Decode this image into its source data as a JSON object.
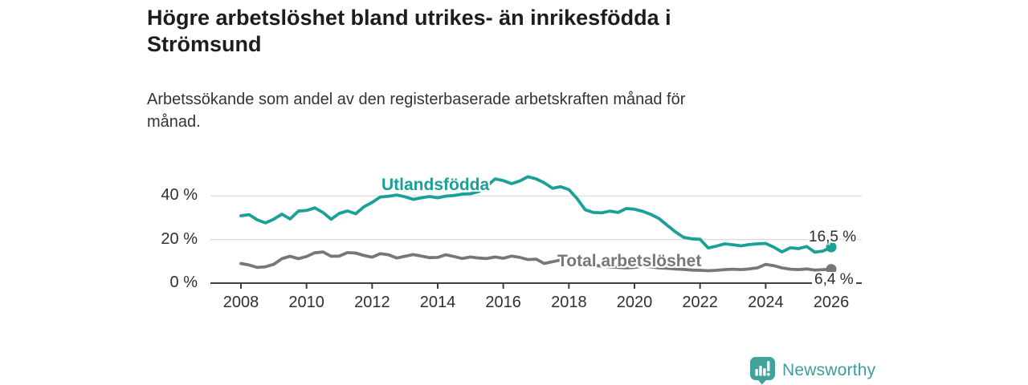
{
  "chart_data": {
    "type": "line",
    "title": "Högre arbetslöshet bland utrikes- än inrikesfödda i\nStrömsund",
    "subtitle": "Arbetssökande som andel av den registerbaserade arbetskraften månad för\nmånad.",
    "x_start": 2008,
    "x_step": 0.25,
    "xlim": [
      2007.05,
      2026.95
    ],
    "ylim": [
      0,
      52
    ],
    "grid": "horizontal",
    "legend": "direct-line-labels",
    "x_ticks": [
      "2008",
      "2010",
      "2012",
      "2014",
      "2016",
      "2018",
      "2020",
      "2022",
      "2024",
      "2026"
    ],
    "y_ticks": [
      {
        "value": 0,
        "label": "0 %"
      },
      {
        "value": 20,
        "label": "20 %"
      },
      {
        "value": 40,
        "label": "40 %"
      }
    ],
    "axis_color": "#3f3f3f",
    "gridline_color": "#d9d9d9",
    "series": [
      {
        "name": "Utlandsfödda",
        "color": "#1aa096",
        "end_value": 16.5,
        "end_label": "16,5 %",
        "values": [
          30.9,
          31.4,
          29.0,
          27.6,
          29.3,
          31.6,
          29.4,
          33.0,
          33.3,
          34.5,
          32.4,
          29.3,
          32.0,
          33.1,
          31.8,
          35.0,
          37.0,
          39.5,
          39.8,
          40.4,
          39.6,
          38.4,
          39.1,
          39.7,
          39.1,
          39.9,
          40.2,
          40.8,
          41.0,
          42.0,
          44.5,
          47.8,
          47.0,
          45.6,
          46.8,
          48.8,
          47.8,
          46.0,
          43.5,
          44.2,
          42.9,
          38.8,
          33.6,
          32.4,
          32.2,
          33.0,
          32.4,
          34.2,
          33.9,
          32.9,
          31.5,
          29.6,
          26.5,
          23.5,
          21.0,
          20.3,
          20.1,
          16.1,
          17.0,
          18.0,
          17.6,
          17.1,
          17.7,
          18.0,
          18.2,
          16.5,
          14.3,
          16.2,
          15.8,
          16.8,
          14.2,
          14.7,
          16.5
        ]
      },
      {
        "name": "Total arbetslöshet",
        "color": "#77777b",
        "end_value": 6.4,
        "end_label": "6,4 %",
        "values": [
          9.0,
          8.3,
          7.2,
          7.5,
          8.6,
          11.2,
          12.3,
          11.2,
          12.2,
          13.9,
          14.3,
          12.3,
          12.4,
          14.0,
          13.8,
          12.7,
          11.9,
          13.5,
          13.0,
          11.5,
          12.3,
          13.1,
          12.4,
          11.7,
          11.8,
          13.0,
          12.2,
          11.3,
          12.0,
          11.5,
          11.3,
          12.0,
          11.4,
          12.4,
          11.8,
          10.8,
          11.0,
          9.0,
          9.8,
          10.6,
          10.2,
          9.4,
          8.8,
          8.2,
          7.8,
          7.5,
          7.2,
          7.0,
          7.2,
          7.8,
          7.5,
          7.0,
          6.8,
          6.5,
          6.3,
          6.0,
          5.9,
          5.7,
          5.9,
          6.2,
          6.4,
          6.2,
          6.5,
          7.0,
          8.6,
          8.0,
          7.0,
          6.4,
          6.2,
          6.5,
          6.0,
          6.2,
          6.4
        ]
      }
    ]
  },
  "footer": {
    "brand": "Newsworthy",
    "brand_color": "#3d9e99",
    "icon_color": "#41a19b",
    "icon": "speech-bubble-bar-chart-icon"
  }
}
